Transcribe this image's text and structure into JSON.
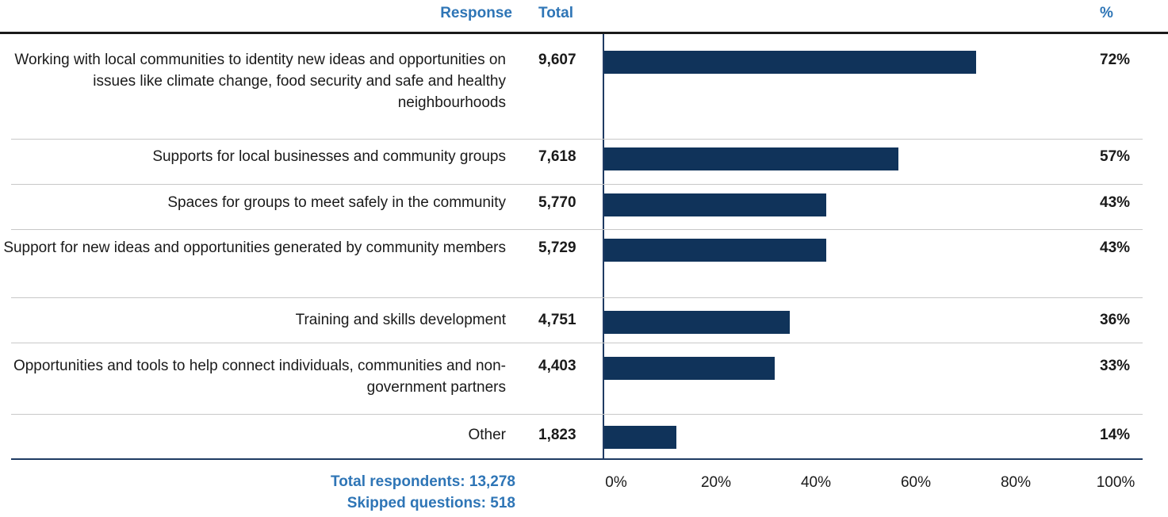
{
  "headers": {
    "response": "Response",
    "total": "Total",
    "percent": "%"
  },
  "chart_data": {
    "type": "bar",
    "orientation": "horizontal",
    "categories": [
      "Working with local communities to identity new ideas and opportunities on issues like climate change, food security and safe and healthy neighbourhoods",
      "Supports for local businesses and community groups",
      "Spaces for groups to meet safely in the community",
      "Support for new ideas and opportunities generated by community members",
      "Training and skills development",
      "Opportunities and tools to help connect individuals, communities and non-government partners",
      "Other"
    ],
    "totals": [
      "9,607",
      "7,618",
      "5,770",
      "5,729",
      "4,751",
      "4,403",
      "1,823"
    ],
    "values": [
      72,
      57,
      43,
      43,
      36,
      33,
      14
    ],
    "value_labels": [
      "72%",
      "57%",
      "43%",
      "43%",
      "36%",
      "33%",
      "14%"
    ],
    "xlim": [
      0,
      100
    ],
    "tick_labels": [
      "0%",
      "20%",
      "40%",
      "60%",
      "80%",
      "100%"
    ],
    "bar_color": "#10335a",
    "header_color": "#2e75b6"
  },
  "footer": {
    "respondents": "Total respondents: 13,278",
    "skipped": "Skipped questions: 518"
  }
}
